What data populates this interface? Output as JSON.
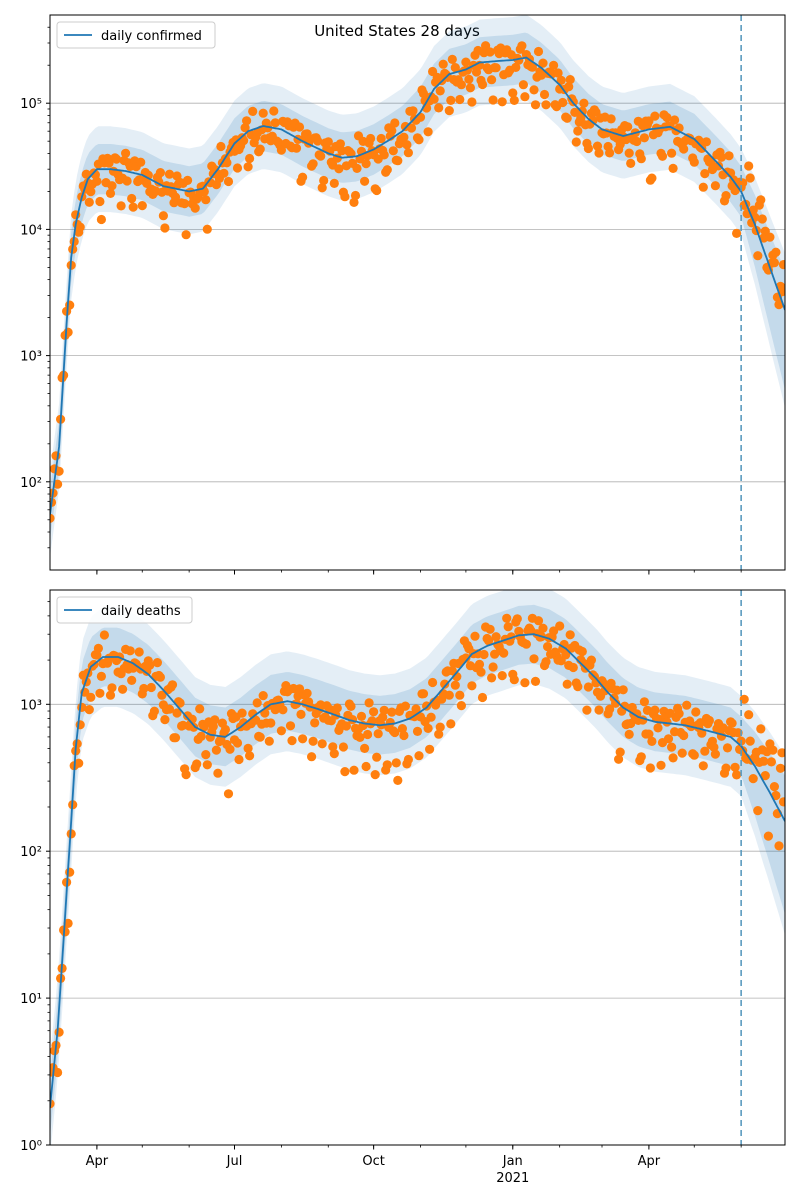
{
  "figure": {
    "suptitle": "United States 28 days"
  },
  "colors": {
    "line": "#1f77b4",
    "points": "#ff7f0e",
    "band": "#1f77b4",
    "vline": "#5b9bbf",
    "grid": "#b0b0b0"
  },
  "chart_data": [
    {
      "type": "line",
      "scale": "log",
      "legend": [
        "daily confirmed"
      ],
      "legend_position": "upper-left",
      "grid_y": true,
      "xlim": [
        "2020-03-01",
        "2021-06-30"
      ],
      "ylim": [
        20,
        500000
      ],
      "x_ticks": [
        {
          "date": "2020-04-01",
          "label": "Apr"
        },
        {
          "date": "2020-07-01",
          "label": "Jul"
        },
        {
          "date": "2020-10-01",
          "label": "Oct"
        },
        {
          "date": "2021-01-01",
          "label": "Jan",
          "sublabel": "2021"
        },
        {
          "date": "2021-04-01",
          "label": "Apr"
        }
      ],
      "y_ticks": [
        {
          "value": 100,
          "label": "10²"
        },
        {
          "value": 1000,
          "label": "10³"
        },
        {
          "value": 10000,
          "label": "10⁴"
        },
        {
          "value": 100000,
          "label": "10⁵"
        }
      ],
      "forecast_start": "2021-06-01",
      "series": [
        {
          "name": "daily confirmed",
          "points": [
            [
              "2020-03-01",
              55
            ],
            [
              "2020-03-07",
              190
            ],
            [
              "2020-03-12",
              1800
            ],
            [
              "2020-03-15",
              6000
            ],
            [
              "2020-03-18",
              11000
            ],
            [
              "2020-03-22",
              18000
            ],
            [
              "2020-03-26",
              25000
            ],
            [
              "2020-04-01",
              30000
            ],
            [
              "2020-04-10",
              30000
            ],
            [
              "2020-04-20",
              29000
            ],
            [
              "2020-05-01",
              27000
            ],
            [
              "2020-05-15",
              22000
            ],
            [
              "2020-06-01",
              20000
            ],
            [
              "2020-06-10",
              21000
            ],
            [
              "2020-06-20",
              30000
            ],
            [
              "2020-07-01",
              48000
            ],
            [
              "2020-07-10",
              60000
            ],
            [
              "2020-07-20",
              66000
            ],
            [
              "2020-08-01",
              62000
            ],
            [
              "2020-08-15",
              50000
            ],
            [
              "2020-09-01",
              40000
            ],
            [
              "2020-09-10",
              37000
            ],
            [
              "2020-09-20",
              38000
            ],
            [
              "2020-10-01",
              43000
            ],
            [
              "2020-10-10",
              50000
            ],
            [
              "2020-10-20",
              60000
            ],
            [
              "2020-11-01",
              85000
            ],
            [
              "2020-11-10",
              130000
            ],
            [
              "2020-11-20",
              170000
            ],
            [
              "2020-12-01",
              185000
            ],
            [
              "2020-12-10",
              210000
            ],
            [
              "2020-12-20",
              215000
            ],
            [
              "2021-01-01",
              220000
            ],
            [
              "2021-01-10",
              230000
            ],
            [
              "2021-01-20",
              190000
            ],
            [
              "2021-02-01",
              140000
            ],
            [
              "2021-02-10",
              100000
            ],
            [
              "2021-02-20",
              75000
            ],
            [
              "2021-03-01",
              62000
            ],
            [
              "2021-03-15",
              55000
            ],
            [
              "2021-04-01",
              62000
            ],
            [
              "2021-04-15",
              65000
            ],
            [
              "2021-05-01",
              52000
            ],
            [
              "2021-05-15",
              35000
            ],
            [
              "2021-05-25",
              26000
            ],
            [
              "2021-06-01",
              20000
            ],
            [
              "2021-06-10",
              11000
            ],
            [
              "2021-06-20",
              5000
            ],
            [
              "2021-06-30",
              2300
            ]
          ]
        }
      ]
    },
    {
      "type": "line",
      "scale": "log",
      "legend": [
        "daily deaths"
      ],
      "legend_position": "upper-left",
      "grid_y": true,
      "xlim": [
        "2020-03-01",
        "2021-06-30"
      ],
      "ylim": [
        1,
        6000
      ],
      "x_ticks": [
        {
          "date": "2020-04-01",
          "label": "Apr"
        },
        {
          "date": "2020-07-01",
          "label": "Jul"
        },
        {
          "date": "2020-10-01",
          "label": "Oct"
        },
        {
          "date": "2021-01-01",
          "label": "Jan",
          "sublabel": "2021"
        },
        {
          "date": "2021-04-01",
          "label": "Apr"
        }
      ],
      "y_ticks": [
        {
          "value": 1,
          "label": "10⁰"
        },
        {
          "value": 10,
          "label": "10¹"
        },
        {
          "value": 100,
          "label": "10²"
        },
        {
          "value": 1000,
          "label": "10³"
        }
      ],
      "forecast_start": "2021-06-01",
      "series": [
        {
          "name": "daily deaths",
          "points": [
            [
              "2020-03-01",
              1.8
            ],
            [
              "2020-03-06",
              6
            ],
            [
              "2020-03-10",
              25
            ],
            [
              "2020-03-14",
              110
            ],
            [
              "2020-03-18",
              500
            ],
            [
              "2020-03-22",
              1200
            ],
            [
              "2020-03-28",
              1800
            ],
            [
              "2020-04-05",
              2100
            ],
            [
              "2020-04-15",
              2100
            ],
            [
              "2020-04-25",
              1900
            ],
            [
              "2020-05-05",
              1600
            ],
            [
              "2020-05-15",
              1250
            ],
            [
              "2020-05-25",
              950
            ],
            [
              "2020-06-05",
              700
            ],
            [
              "2020-06-15",
              620
            ],
            [
              "2020-06-25",
              600
            ],
            [
              "2020-07-05",
              700
            ],
            [
              "2020-07-15",
              850
            ],
            [
              "2020-07-25",
              1000
            ],
            [
              "2020-08-05",
              1050
            ],
            [
              "2020-08-15",
              1000
            ],
            [
              "2020-08-25",
              930
            ],
            [
              "2020-09-05",
              850
            ],
            [
              "2020-09-15",
              780
            ],
            [
              "2020-09-25",
              740
            ],
            [
              "2020-10-05",
              720
            ],
            [
              "2020-10-15",
              740
            ],
            [
              "2020-10-25",
              800
            ],
            [
              "2020-11-05",
              950
            ],
            [
              "2020-11-15",
              1250
            ],
            [
              "2020-11-25",
              1650
            ],
            [
              "2020-12-05",
              2200
            ],
            [
              "2020-12-15",
              2500
            ],
            [
              "2020-12-25",
              2700
            ],
            [
              "2021-01-05",
              2950
            ],
            [
              "2021-01-15",
              3000
            ],
            [
              "2021-01-25",
              2800
            ],
            [
              "2021-02-05",
              2400
            ],
            [
              "2021-02-15",
              1900
            ],
            [
              "2021-02-25",
              1500
            ],
            [
              "2021-03-05",
              1200
            ],
            [
              "2021-03-15",
              950
            ],
            [
              "2021-03-25",
              820
            ],
            [
              "2021-04-05",
              760
            ],
            [
              "2021-04-15",
              740
            ],
            [
              "2021-04-25",
              720
            ],
            [
              "2021-05-05",
              680
            ],
            [
              "2021-05-15",
              640
            ],
            [
              "2021-05-25",
              600
            ],
            [
              "2021-06-01",
              520
            ],
            [
              "2021-06-10",
              380
            ],
            [
              "2021-06-20",
              250
            ],
            [
              "2021-06-30",
              160
            ]
          ]
        }
      ]
    }
  ]
}
